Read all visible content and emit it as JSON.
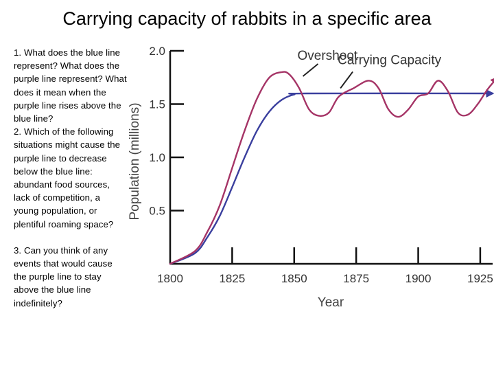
{
  "slide": {
    "title": "Carrying capacity of rabbits in a specific area"
  },
  "questions": [
    "1. What does the blue line represent? What does the purple line represent? What does it mean when the purple line rises above the blue line?",
    "2. Which of the following situations might cause the purple line to decrease below the blue line: abundant food sources, lack of competition, a young population, or plentiful roaming space?",
    "3. Can you think of any events that would cause the purple line to stay above the blue line indefinitely?"
  ],
  "colors": {
    "carrying_capacity": "#3a3f9e",
    "population": "#a53466",
    "axis": "#111111"
  },
  "chart_data": {
    "type": "line",
    "title": "",
    "xlabel": "Year",
    "ylabel": "Population (millions)",
    "xlim": [
      1800,
      1930
    ],
    "ylim": [
      0,
      2.0
    ],
    "x_ticks": [
      1800,
      1825,
      1850,
      1875,
      1900,
      1925
    ],
    "y_ticks": [
      0.5,
      1.0,
      1.5,
      2.0
    ],
    "grid": false,
    "series": [
      {
        "name": "Carrying Capacity",
        "color": "#3a3f9e",
        "arrow": true,
        "points": [
          [
            1800,
            0.0
          ],
          [
            1810,
            0.1
          ],
          [
            1815,
            0.25
          ],
          [
            1820,
            0.45
          ],
          [
            1825,
            0.72
          ],
          [
            1830,
            1.0
          ],
          [
            1835,
            1.25
          ],
          [
            1840,
            1.43
          ],
          [
            1845,
            1.54
          ],
          [
            1850,
            1.59
          ],
          [
            1855,
            1.6
          ],
          [
            1930,
            1.6
          ]
        ]
      },
      {
        "name": "",
        "color": "#a53466",
        "arrow": true,
        "points": [
          [
            1800,
            0.0
          ],
          [
            1810,
            0.12
          ],
          [
            1815,
            0.3
          ],
          [
            1820,
            0.55
          ],
          [
            1825,
            0.9
          ],
          [
            1830,
            1.25
          ],
          [
            1835,
            1.55
          ],
          [
            1840,
            1.75
          ],
          [
            1845,
            1.8
          ],
          [
            1848,
            1.78
          ],
          [
            1852,
            1.65
          ],
          [
            1856,
            1.45
          ],
          [
            1860,
            1.39
          ],
          [
            1864,
            1.42
          ],
          [
            1868,
            1.57
          ],
          [
            1874,
            1.65
          ],
          [
            1880,
            1.72
          ],
          [
            1884,
            1.65
          ],
          [
            1888,
            1.45
          ],
          [
            1892,
            1.38
          ],
          [
            1896,
            1.45
          ],
          [
            1900,
            1.57
          ],
          [
            1904,
            1.6
          ],
          [
            1908,
            1.72
          ],
          [
            1912,
            1.62
          ],
          [
            1916,
            1.42
          ],
          [
            1920,
            1.4
          ],
          [
            1924,
            1.5
          ],
          [
            1928,
            1.64
          ],
          [
            1932,
            1.75
          ]
        ]
      }
    ],
    "annotations": [
      {
        "text": "Overshoot",
        "x": 1848,
        "y": 1.8
      },
      {
        "text": "Carrying Capacity",
        "x": 1862,
        "y": 1.61
      }
    ]
  }
}
